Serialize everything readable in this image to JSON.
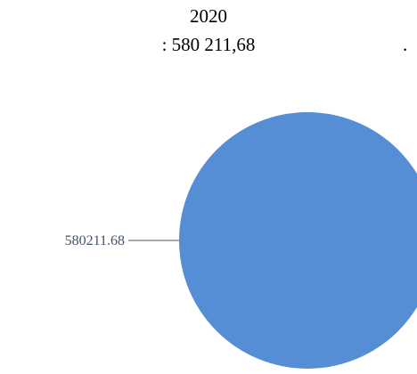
{
  "title": {
    "line1": "2020",
    "line2": ": 580 211,68",
    "trailing_mark": "."
  },
  "chart_data": {
    "type": "pie",
    "title": "2020 : 580 211,68 .",
    "slices": [
      {
        "value": 580211.68,
        "label": "580211.68",
        "color": "#558ed5"
      }
    ],
    "legend": "none",
    "label_color": "#44546a",
    "leader_line_color": "#44546a"
  }
}
